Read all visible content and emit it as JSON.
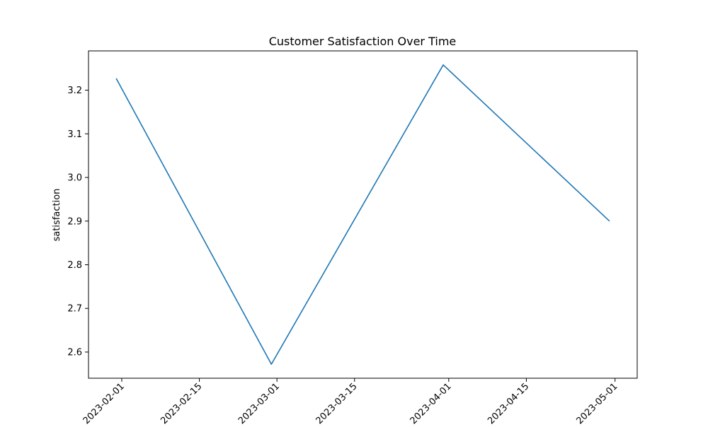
{
  "chart_data": {
    "type": "line",
    "title": "Customer Satisfaction Over Time",
    "xlabel": "",
    "ylabel": "satisfaction",
    "x": [
      "2023-01-31",
      "2023-02-28",
      "2023-03-31",
      "2023-04-30"
    ],
    "series": [
      {
        "values": [
          3.227,
          2.572,
          3.258,
          2.9
        ]
      }
    ],
    "xlim": [
      "2023-01-26",
      "2023-05-05"
    ],
    "ylim": [
      2.54,
      3.29
    ],
    "x_ticks": [
      "2023-02-01",
      "2023-02-15",
      "2023-03-01",
      "2023-03-15",
      "2023-04-01",
      "2023-04-15",
      "2023-05-01"
    ],
    "y_ticks": [
      2.6,
      2.7,
      2.8,
      2.9,
      3.0,
      3.1,
      3.2
    ],
    "y_tick_labels": [
      "2.6",
      "2.7",
      "2.8",
      "2.9",
      "3.0",
      "3.1",
      "3.2"
    ],
    "line_color": "#1f77b4",
    "grid": false,
    "legend": "none"
  }
}
